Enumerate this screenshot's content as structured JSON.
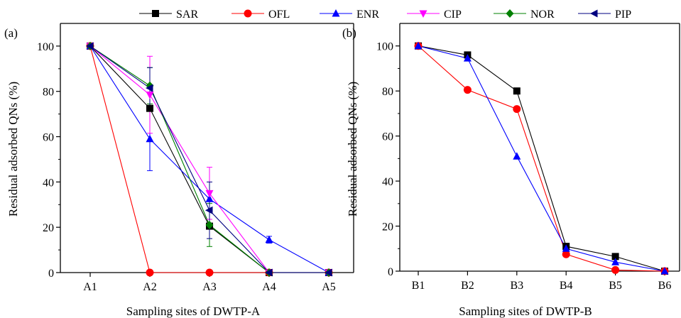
{
  "legend": {
    "entries": [
      {
        "name": "SAR",
        "color": "#000000",
        "marker": "square"
      },
      {
        "name": "OFL",
        "color": "#ff0000",
        "marker": "circle"
      },
      {
        "name": "ENR",
        "color": "#0000ff",
        "marker": "triangle-up"
      },
      {
        "name": "CIP",
        "color": "#ff00ff",
        "marker": "triangle-down"
      },
      {
        "name": "NOR",
        "color": "#008000",
        "marker": "diamond"
      },
      {
        "name": "PIP",
        "color": "#000080",
        "marker": "triangle-left"
      }
    ],
    "placement": "top-center"
  },
  "chart_data": [
    {
      "type": "line",
      "panel_label": "(a)",
      "xlabel": "Sampling sites of DWTP-A",
      "ylabel": "Residual adsorbed QNs (%)",
      "categories": [
        "A1",
        "A2",
        "A3",
        "A4",
        "A5"
      ],
      "ylim": [
        0,
        110
      ],
      "yticks": [
        0,
        20,
        40,
        60,
        80,
        100
      ],
      "grid": false,
      "series": [
        {
          "name": "SAR",
          "values": [
            100,
            72.5,
            20.5,
            0,
            0
          ]
        },
        {
          "name": "OFL",
          "values": [
            100,
            0,
            0,
            0,
            0
          ]
        },
        {
          "name": "ENR",
          "values": [
            100,
            59,
            32.5,
            14.5,
            0
          ],
          "error": [
            0,
            14,
            0,
            1.5,
            0
          ]
        },
        {
          "name": "CIP",
          "values": [
            100,
            78.5,
            35,
            0,
            0
          ],
          "error": [
            0,
            17,
            11.5,
            0,
            0
          ]
        },
        {
          "name": "NOR",
          "values": [
            100,
            82.5,
            21,
            0,
            0
          ],
          "error": [
            0,
            8,
            9.5,
            0,
            0
          ]
        },
        {
          "name": "PIP",
          "values": [
            100,
            81.5,
            27.5,
            0,
            0
          ],
          "error": [
            0,
            9,
            12.5,
            0,
            0
          ]
        }
      ]
    },
    {
      "type": "line",
      "panel_label": "(b)",
      "xlabel": "Sampling sites of DWTP-B",
      "ylabel": "Residual  adsorbed QNs (%)",
      "categories": [
        "B1",
        "B2",
        "B3",
        "B4",
        "B5",
        "B6"
      ],
      "ylim": [
        0,
        110
      ],
      "yticks": [
        0,
        20,
        40,
        60,
        80,
        100
      ],
      "grid": false,
      "series": [
        {
          "name": "SAR",
          "values": [
            100,
            96,
            80,
            11,
            6.5,
            0
          ]
        },
        {
          "name": "OFL",
          "values": [
            100,
            80.5,
            72,
            7.5,
            0.5,
            0
          ]
        },
        {
          "name": "ENR",
          "values": [
            100,
            94.5,
            51,
            10,
            4,
            0
          ]
        }
      ]
    }
  ]
}
